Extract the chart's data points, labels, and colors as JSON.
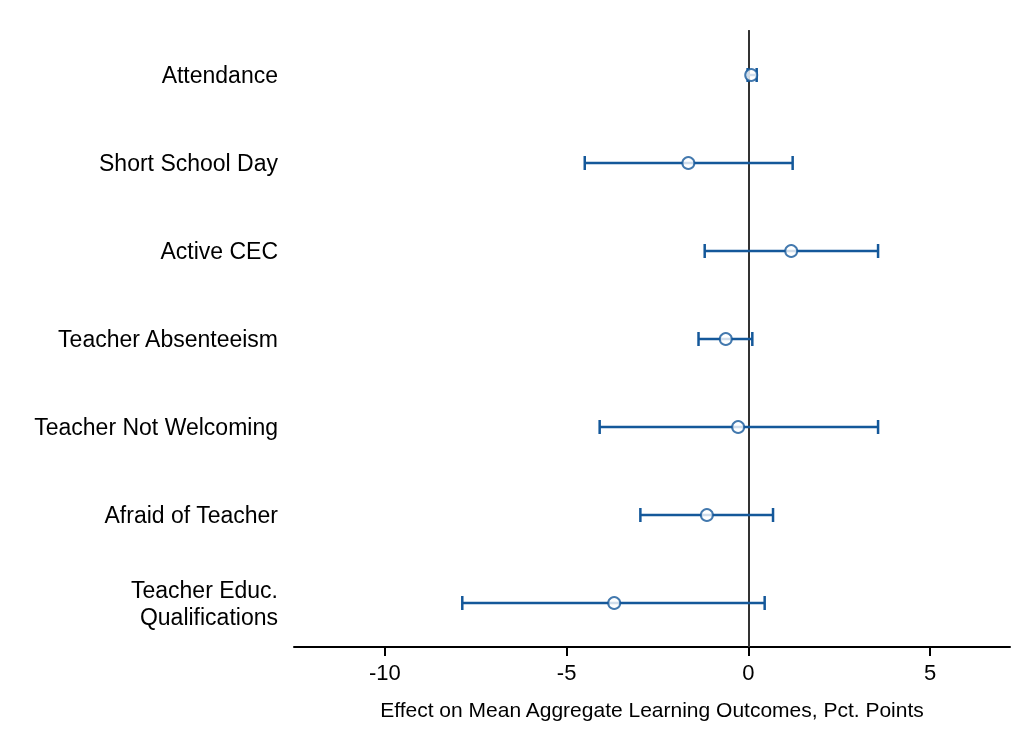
{
  "chart_data": {
    "type": "scatter",
    "orientation": "horizontal",
    "xlabel": "Effect on Mean Aggregate Learning Outcomes, Pct. Points",
    "categories": [
      "Attendance",
      "Short School Day",
      "Active CEC",
      "Teacher Absenteeism",
      "Teacher Not Welcoming",
      "Afraid of Teacher",
      "Teacher Educ.\nQualifications"
    ],
    "values": [
      0.08,
      -1.65,
      1.18,
      -0.62,
      -0.28,
      -1.14,
      -3.69
    ],
    "errors": [
      [
        -0.02,
        0.23
      ],
      [
        -4.5,
        1.22
      ],
      [
        -1.2,
        3.57
      ],
      [
        -1.37,
        0.11
      ],
      [
        -4.09,
        3.57
      ],
      [
        -2.97,
        0.68
      ],
      [
        -7.87,
        0.45
      ]
    ],
    "color": "#14589a",
    "marker": "circle",
    "grid": false,
    "xlim": [
      -12.5,
      7.2
    ],
    "xticks": [
      -10,
      -5,
      0,
      5
    ],
    "ref_lines": [
      {
        "axis": "x",
        "value": 0,
        "color": "#333333"
      }
    ]
  }
}
